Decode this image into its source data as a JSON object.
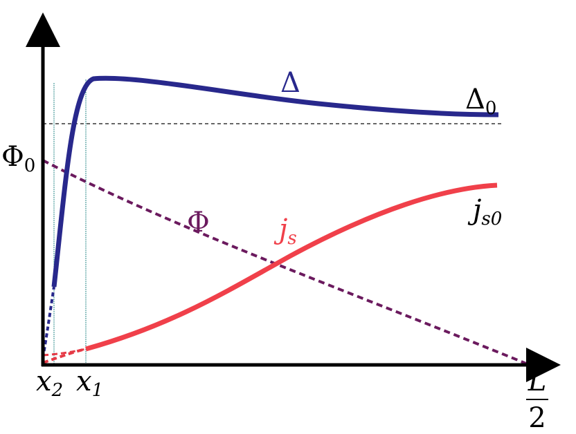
{
  "labels": {
    "delta": "Δ",
    "delta0": {
      "base": "Δ",
      "sub": "0"
    },
    "phi0": {
      "base": "Φ",
      "sub": "0"
    },
    "phi": "Φ",
    "js": {
      "base": "j",
      "sub": "s"
    },
    "js0": {
      "base": "j",
      "sub": "s0"
    },
    "x2": {
      "base": "x",
      "sub": "2"
    },
    "x1": {
      "base": "x",
      "sub": "1"
    },
    "half_length": {
      "numerator": "L",
      "denominator": "2"
    }
  }
}
